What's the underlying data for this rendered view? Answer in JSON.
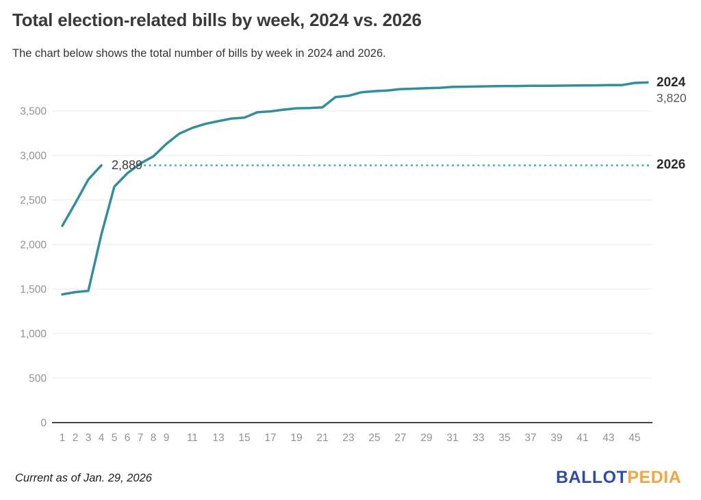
{
  "header": {
    "title": "Total election-related bills by week, 2024 vs. 2026",
    "subtitle": "The chart below shows the total number of bills by week in 2024 and 2026."
  },
  "colors": {
    "line": "#2e8f9f",
    "dotted": "#45b2c5",
    "grid": "#e8e8e8",
    "axis": "#444444",
    "tick": "#929292",
    "logo_blue": "#2e4ca4",
    "logo_gold": "#f3a63d"
  },
  "chart_data": {
    "type": "line",
    "title": "Total election-related bills by week, 2024 vs. 2026",
    "xlabel": "",
    "ylabel": "",
    "x_axis": {
      "tick_weeks": [
        1,
        2,
        3,
        4,
        5,
        6,
        7,
        8,
        9,
        11,
        13,
        15,
        17,
        19,
        21,
        23,
        25,
        27,
        29,
        31,
        33,
        35,
        37,
        39,
        41,
        43,
        45
      ],
      "range": [
        1,
        46
      ]
    },
    "y_axis": {
      "values": [
        0,
        500,
        1000,
        1500,
        2000,
        2500,
        3000,
        3500
      ],
      "labels": [
        "0",
        "500",
        "1,000",
        "1,500",
        "2,000",
        "2,500",
        "3,000",
        "3,500"
      ],
      "range": [
        0,
        3900
      ],
      "grid": true
    },
    "series": [
      {
        "name": "2024",
        "x": [
          1,
          2,
          3,
          4,
          5,
          6,
          7,
          8,
          9,
          10,
          11,
          12,
          13,
          14,
          15,
          16,
          17,
          18,
          19,
          20,
          21,
          22,
          23,
          24,
          25,
          26,
          27,
          28,
          29,
          30,
          31,
          32,
          33,
          34,
          35,
          36,
          37,
          38,
          39,
          40,
          41,
          42,
          43,
          44,
          45,
          46
        ],
        "values": [
          1440,
          1465,
          1480,
          2110,
          2650,
          2800,
          2910,
          2990,
          3130,
          3245,
          3310,
          3355,
          3385,
          3415,
          3425,
          3485,
          3495,
          3515,
          3530,
          3532,
          3540,
          3655,
          3670,
          3710,
          3722,
          3730,
          3745,
          3750,
          3755,
          3760,
          3770,
          3772,
          3775,
          3778,
          3780,
          3780,
          3782,
          3783,
          3784,
          3785,
          3786,
          3788,
          3790,
          3790,
          3815,
          3820
        ],
        "final_value": 3820,
        "final_label": "3,820"
      },
      {
        "name": "2026",
        "x": [
          1,
          2,
          3,
          4
        ],
        "values": [
          2210,
          2465,
          2730,
          2889
        ],
        "final_value": 2889,
        "final_label": "2,889"
      }
    ],
    "reference_line": {
      "value": 2889,
      "label": "2026",
      "style": "dotted"
    },
    "legend_position": "right-inline"
  },
  "annotations": {
    "v2026": "2,889",
    "label2024": "2024",
    "value2024": "3,820",
    "label2026": "2026"
  },
  "footer": {
    "note": "Current as of Jan. 29, 2026",
    "logo_part1": "BALLOT",
    "logo_part2": "PEDIA"
  }
}
